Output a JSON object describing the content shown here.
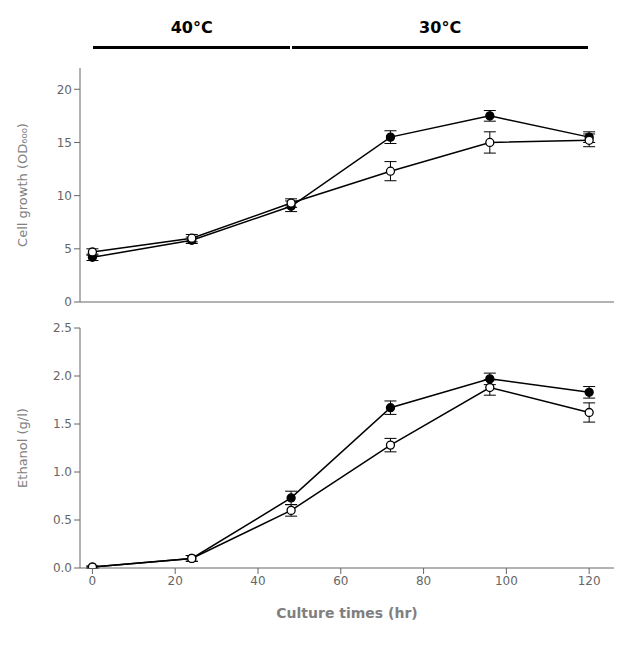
{
  "chart_data": [
    {
      "type": "line",
      "ylabel": "Cell growth (OD₆₀₀)",
      "x": [
        0,
        24,
        48,
        72,
        96,
        120
      ],
      "xlim": [
        -3,
        126
      ],
      "xticks": [
        0,
        20,
        40,
        60,
        80,
        100,
        120
      ],
      "ylim": [
        0,
        22
      ],
      "yticks": [
        0,
        5,
        10,
        15,
        20
      ],
      "grid": false,
      "tick_labels": "y",
      "annotations": [
        {
          "text": "40°C",
          "x": [
            0,
            48
          ]
        },
        {
          "text": "30°C",
          "x": [
            48,
            120
          ]
        }
      ],
      "series": [
        {
          "color": "#000000",
          "marker": "circle",
          "line_style": "solid",
          "values": [
            4.2,
            5.8,
            9.0,
            15.5,
            17.5,
            15.5
          ],
          "errors": [
            0.3,
            0.3,
            0.5,
            0.6,
            0.5,
            0.5
          ]
        },
        {
          "color": "#000000",
          "marker": "open_circle",
          "line_style": "solid",
          "values": [
            4.7,
            6.0,
            9.3,
            12.3,
            15.0,
            15.2
          ],
          "errors": [
            0.3,
            0.35,
            0.4,
            0.9,
            1.0,
            0.6
          ]
        }
      ]
    },
    {
      "type": "line",
      "xlabel": "Culture times (hr)",
      "ylabel": "Ethanol (g/l)",
      "x": [
        0,
        24,
        48,
        72,
        96,
        120
      ],
      "xlim": [
        -3,
        126
      ],
      "xticks": [
        0,
        20,
        40,
        60,
        80,
        100,
        120
      ],
      "ylim": [
        0,
        2.5
      ],
      "yticks": [
        {
          "value": 0,
          "label": "0.0"
        },
        0.5,
        {
          "value": 1,
          "label": "1.0"
        },
        1.5,
        {
          "value": 2,
          "label": "2.0"
        },
        2.5
      ],
      "grid": false,
      "series": [
        {
          "color": "#000000",
          "marker": "circle",
          "line_style": "solid",
          "values": [
            0.01,
            0.1,
            0.73,
            1.67,
            1.97,
            1.83
          ],
          "errors": [
            0.01,
            0.03,
            0.07,
            0.07,
            0.06,
            0.06
          ]
        },
        {
          "color": "#000000",
          "marker": "open_circle",
          "line_style": "solid",
          "values": [
            0.01,
            0.1,
            0.6,
            1.28,
            1.88,
            1.62
          ],
          "errors": [
            0.01,
            0.03,
            0.06,
            0.07,
            0.08,
            0.1
          ]
        }
      ]
    }
  ]
}
